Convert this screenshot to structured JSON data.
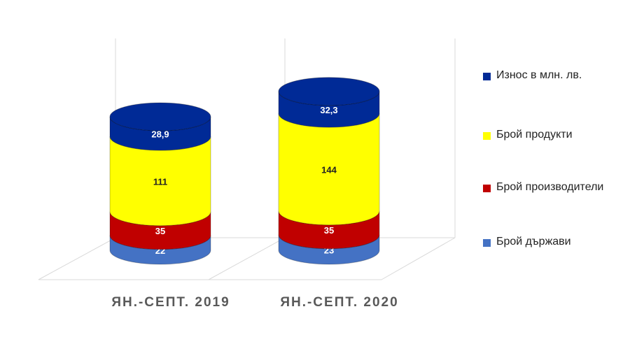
{
  "chart_data": {
    "type": "stacked-cylinder",
    "categories": [
      "ЯН.-СЕПТ. 2019",
      "ЯН.-СЕПТ. 2020"
    ],
    "series": [
      {
        "name": "Брой държави",
        "color": "#4472c4",
        "values": [
          22,
          23
        ]
      },
      {
        "name": "Брой производители",
        "color": "#c00000",
        "values": [
          35,
          35
        ]
      },
      {
        "name": "Брой продукти",
        "color": "#ffff00",
        "values": [
          111,
          144
        ]
      },
      {
        "name": "Износ в млн. лв.",
        "color": "#002a96",
        "values": [
          28.9,
          32.3
        ],
        "value_labels": [
          "28,9",
          "32,3"
        ]
      }
    ],
    "legend": "right"
  }
}
